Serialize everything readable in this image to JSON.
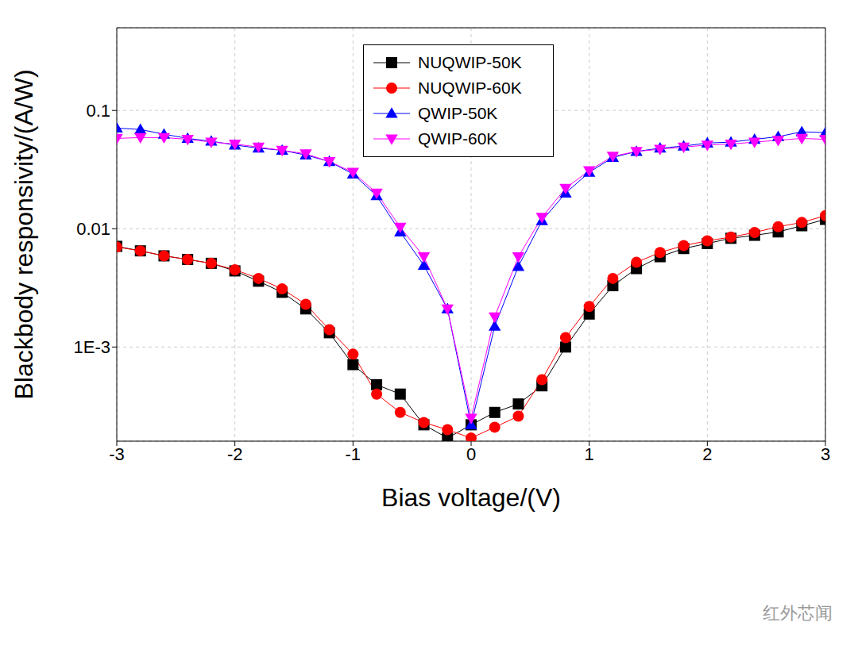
{
  "chart_data": {
    "type": "line",
    "x_label": "Bias voltage/(V)",
    "y_label": "Blackbody responsivity/(A/W)",
    "annotations": [
      "红外芯闻"
    ],
    "x": [
      -3,
      -2.8,
      -2.6,
      -2.4,
      -2.2,
      -2,
      -1.8,
      -1.6,
      -1.4,
      -1.2,
      -1,
      -0.8,
      -0.6,
      -0.4,
      -0.2,
      0,
      0.2,
      0.4,
      0.6,
      0.8,
      1,
      1.2,
      1.4,
      1.6,
      1.8,
      2,
      2.2,
      2.4,
      2.6,
      2.8,
      3
    ],
    "series": [
      {
        "name": "NUQWIP-50K",
        "color": "#000000",
        "marker": "square",
        "values": [
          0.0071,
          0.0065,
          0.0059,
          0.0055,
          0.0051,
          0.0044,
          0.0036,
          0.0029,
          0.0021,
          0.00132,
          0.00071,
          0.00048,
          0.0004,
          0.00022,
          0.00017,
          0.00022,
          0.00028,
          0.00033,
          0.00047,
          0.001,
          0.0019,
          0.0033,
          0.0046,
          0.0058,
          0.0068,
          0.0075,
          0.0083,
          0.0088,
          0.0094,
          0.0106,
          0.012
        ]
      },
      {
        "name": "NUQWIP-60K",
        "color": "#ff0000",
        "marker": "circle",
        "values": [
          0.007,
          0.0065,
          0.0059,
          0.0055,
          0.0051,
          0.0045,
          0.0038,
          0.0031,
          0.0023,
          0.0014,
          0.00087,
          0.0004,
          0.00028,
          0.00023,
          0.0002,
          0.00017,
          0.00021,
          0.00026,
          0.00053,
          0.0012,
          0.0022,
          0.0038,
          0.0052,
          0.0063,
          0.0072,
          0.0079,
          0.0085,
          0.0093,
          0.0104,
          0.0113,
          0.0129
        ]
      },
      {
        "name": "QWIP-50K",
        "color": "#0000ff",
        "marker": "triangle-up",
        "values": [
          0.071,
          0.069,
          0.063,
          0.058,
          0.055,
          0.051,
          0.048,
          0.046,
          0.042,
          0.037,
          0.029,
          0.019,
          0.0094,
          0.0049,
          0.0021,
          0.00022,
          0.0015,
          0.0048,
          0.0117,
          0.02,
          0.03,
          0.04,
          0.045,
          0.048,
          0.05,
          0.053,
          0.054,
          0.057,
          0.06,
          0.066,
          0.065
        ]
      },
      {
        "name": "QWIP-60K",
        "color": "#ff00ff",
        "marker": "triangle-down",
        "values": [
          0.058,
          0.059,
          0.059,
          0.057,
          0.054,
          0.052,
          0.049,
          0.046,
          0.043,
          0.037,
          0.03,
          0.02,
          0.0103,
          0.0058,
          0.0021,
          0.00025,
          0.0018,
          0.0058,
          0.0125,
          0.022,
          0.031,
          0.041,
          0.045,
          0.047,
          0.049,
          0.051,
          0.052,
          0.054,
          0.056,
          0.058,
          0.057
        ]
      }
    ],
    "xlim": [
      -3,
      3
    ],
    "xticks": [
      -3,
      -2,
      -1,
      0,
      1,
      2,
      3
    ],
    "ylim": [
      0.00016,
      0.5
    ],
    "yticks": [
      {
        "value": 0.001,
        "label": "1E-3"
      },
      0.01,
      0.1
    ],
    "log": "y",
    "grid": true,
    "legend": "upper center"
  }
}
